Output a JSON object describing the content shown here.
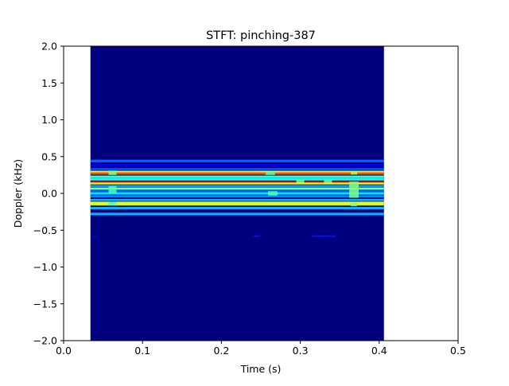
{
  "chart_data": {
    "type": "heatmap",
    "title": "STFT: pinching-387",
    "xlabel": "Time (s)",
    "ylabel": "Doppler (kHz)",
    "xlim": [
      0.0,
      0.5
    ],
    "ylim": [
      -2.0,
      2.0
    ],
    "xticks": [
      "0.0",
      "0.1",
      "0.2",
      "0.3",
      "0.4",
      "0.5"
    ],
    "yticks": [
      "2.0",
      "1.5",
      "1.0",
      "0.5",
      "0.0",
      "−0.5",
      "−1.0",
      "−1.5",
      "−2.0"
    ],
    "xtick_values": [
      0.0,
      0.1,
      0.2,
      0.3,
      0.4,
      0.5
    ],
    "ytick_values": [
      2.0,
      1.5,
      1.0,
      0.5,
      0.0,
      -0.5,
      -1.0,
      -1.5,
      -2.0
    ],
    "grid": false,
    "colormap": "jet",
    "background_color": "#00007f",
    "data_extent": {
      "t": [
        0.034,
        0.406
      ],
      "f": [
        -2.0,
        2.0
      ]
    },
    "intensity_range": [
      0,
      1
    ],
    "bands": [
      {
        "f": 0.44,
        "h": 0.035,
        "v": 0.22
      },
      {
        "f": 0.385,
        "h": 0.03,
        "v": 0.12
      },
      {
        "f": 0.33,
        "h": 0.03,
        "v": 0.2
      },
      {
        "f": 0.29,
        "h": 0.035,
        "v": 0.56
      },
      {
        "f": 0.27,
        "h": 0.03,
        "v": 0.8
      },
      {
        "f": 0.225,
        "h": 0.035,
        "v": 0.42
      },
      {
        "f": 0.19,
        "h": 0.03,
        "v": 0.38
      },
      {
        "f": 0.155,
        "h": 0.03,
        "v": 0.9
      },
      {
        "f": 0.135,
        "h": 0.025,
        "v": 0.62
      },
      {
        "f": 0.1,
        "h": 0.03,
        "v": 0.28
      },
      {
        "f": 0.065,
        "h": 0.03,
        "v": 0.5
      },
      {
        "f": 0.035,
        "h": 0.03,
        "v": 0.22
      },
      {
        "f": 0.0,
        "h": 0.035,
        "v": 0.35
      },
      {
        "f": -0.04,
        "h": 0.03,
        "v": 0.26
      },
      {
        "f": -0.09,
        "h": 0.03,
        "v": 0.3
      },
      {
        "f": -0.125,
        "h": 0.025,
        "v": 0.62
      },
      {
        "f": -0.15,
        "h": 0.03,
        "v": 0.58
      },
      {
        "f": -0.2,
        "h": 0.03,
        "v": 0.32
      },
      {
        "f": -0.28,
        "h": 0.035,
        "v": 0.3
      }
    ],
    "blobs": [
      {
        "t": 0.062,
        "f": 0.28,
        "w": 0.01,
        "h": 0.06,
        "v": 0.5
      },
      {
        "t": 0.062,
        "f": 0.05,
        "w": 0.01,
        "h": 0.1,
        "v": 0.45
      },
      {
        "t": 0.062,
        "f": -0.14,
        "w": 0.01,
        "h": 0.05,
        "v": 0.45
      },
      {
        "t": 0.262,
        "f": 0.27,
        "w": 0.012,
        "h": 0.04,
        "v": 0.45
      },
      {
        "t": 0.265,
        "f": 0.0,
        "w": 0.012,
        "h": 0.06,
        "v": 0.45
      },
      {
        "t": 0.3,
        "f": 0.165,
        "w": 0.01,
        "h": 0.04,
        "v": 0.5
      },
      {
        "t": 0.335,
        "f": 0.16,
        "w": 0.01,
        "h": 0.04,
        "v": 0.5
      },
      {
        "t": 0.368,
        "f": 0.28,
        "w": 0.008,
        "h": 0.05,
        "v": 0.55
      },
      {
        "t": 0.368,
        "f": 0.05,
        "w": 0.012,
        "h": 0.22,
        "v": 0.5
      },
      {
        "t": 0.368,
        "f": -0.15,
        "w": 0.008,
        "h": 0.05,
        "v": 0.5
      },
      {
        "t": 0.245,
        "f": -0.58,
        "w": 0.008,
        "h": 0.02,
        "v": 0.15
      },
      {
        "t": 0.33,
        "f": -0.58,
        "w": 0.03,
        "h": 0.02,
        "v": 0.15
      },
      {
        "t": 0.04,
        "f": -0.6,
        "w": 0.006,
        "h": 0.02,
        "v": 0.1
      }
    ]
  }
}
